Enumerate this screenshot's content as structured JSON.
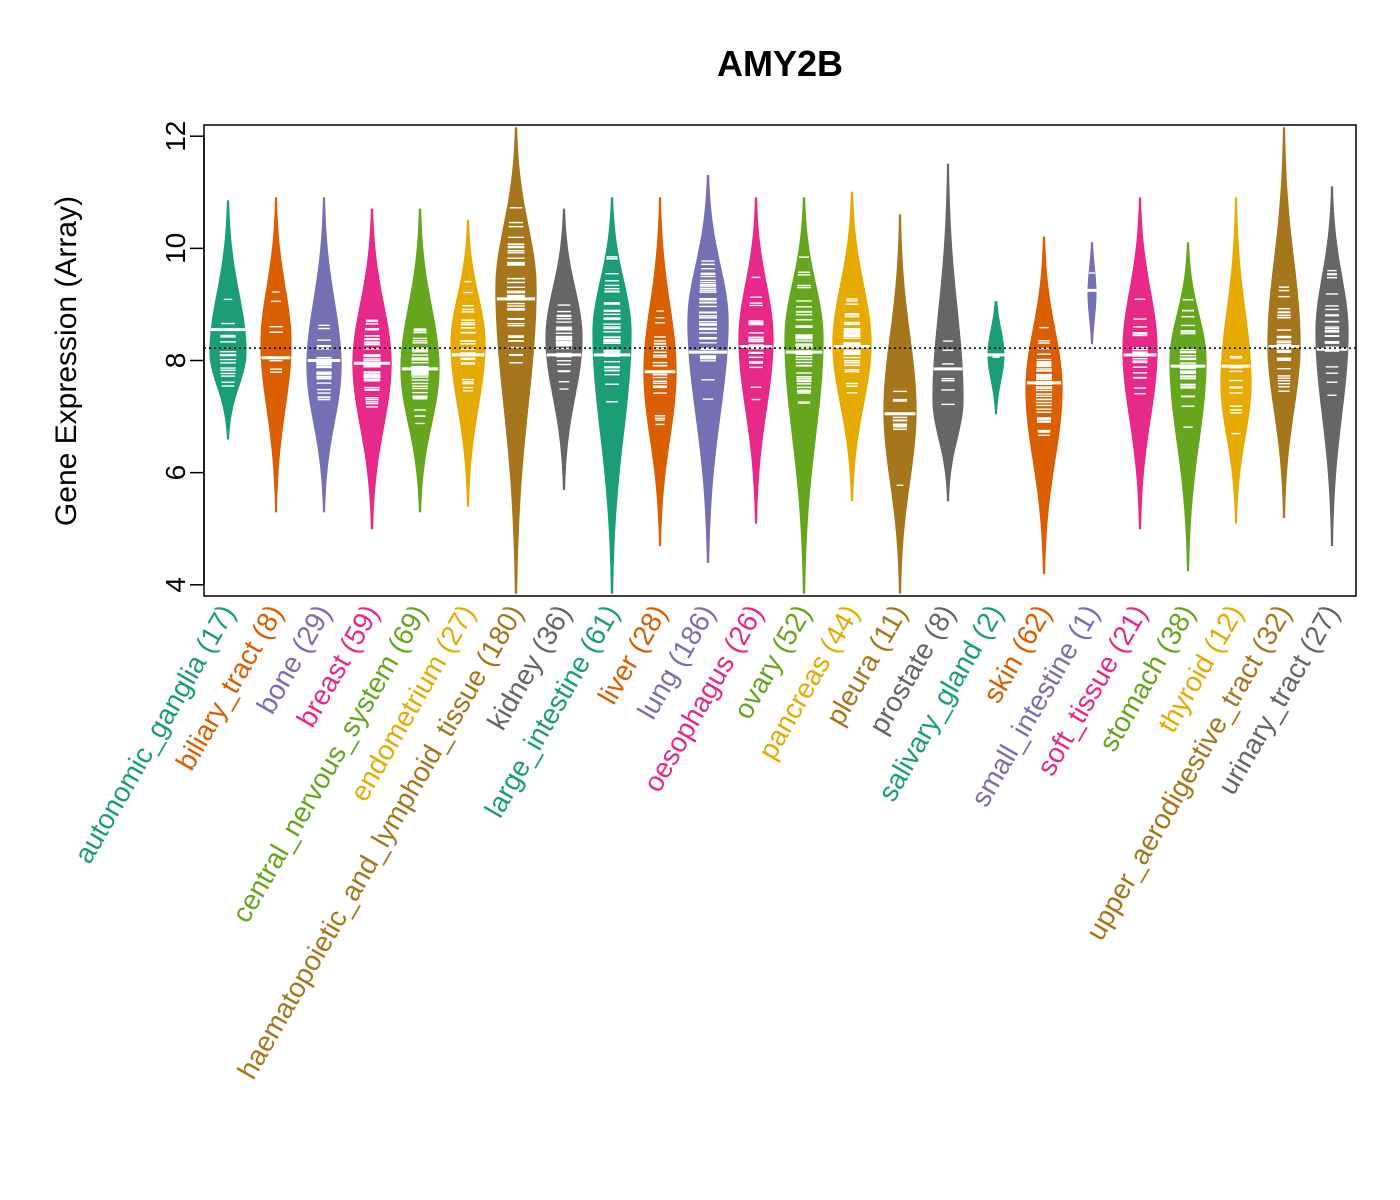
{
  "chart_data": {
    "type": "beanplot",
    "title": "AMY2B",
    "xlabel": "",
    "ylabel": "Gene Expression (Array)",
    "ylim": [
      3.8,
      12.2
    ],
    "yticks": [
      4,
      6,
      8,
      10,
      12
    ],
    "reference_line": 8.22,
    "categories": [
      {
        "name": "autonomic_ganglia",
        "n": 17,
        "label": "autonomic_ganglia (17)",
        "color": "#1B9E77",
        "median": 8.55,
        "min": 6.6,
        "max": 10.85,
        "peak": 8.15,
        "width": 0.9
      },
      {
        "name": "biliary_tract",
        "n": 8,
        "label": "biliary_tract (8)",
        "color": "#D95F02",
        "median": 8.05,
        "min": 5.3,
        "max": 10.9,
        "peak": 8.3,
        "width": 0.75
      },
      {
        "name": "bone",
        "n": 29,
        "label": "bone (29)",
        "color": "#7570B3",
        "median": 8.0,
        "min": 5.3,
        "max": 10.9,
        "peak": 7.9,
        "width": 0.85
      },
      {
        "name": "breast",
        "n": 59,
        "label": "breast (59)",
        "color": "#E7298A",
        "median": 7.95,
        "min": 5.0,
        "max": 10.7,
        "peak": 7.95,
        "width": 0.95
      },
      {
        "name": "central_nervous_system",
        "n": 69,
        "label": "central_nervous_system (69)",
        "color": "#66A61E",
        "median": 7.85,
        "min": 5.3,
        "max": 10.7,
        "peak": 7.85,
        "width": 0.95
      },
      {
        "name": "endometrium",
        "n": 27,
        "label": "endometrium (27)",
        "color": "#E6AB02",
        "median": 8.1,
        "min": 5.4,
        "max": 10.5,
        "peak": 8.3,
        "width": 0.85
      },
      {
        "name": "haematopoietic_and_lymphoid_tissue",
        "n": 180,
        "label": "haematopoietic_and_lymphoid_tissue (180)",
        "color": "#A6761D",
        "median": 9.1,
        "min": 3.85,
        "max": 12.15,
        "peak": 9.3,
        "width": 1.0
      },
      {
        "name": "kidney",
        "n": 36,
        "label": "kidney (36)",
        "color": "#666666",
        "median": 8.1,
        "min": 5.7,
        "max": 10.7,
        "peak": 8.4,
        "width": 0.9
      },
      {
        "name": "large_intestine",
        "n": 61,
        "label": "large_intestine (61)",
        "color": "#1B9E77",
        "median": 8.1,
        "min": 3.85,
        "max": 10.9,
        "peak": 8.5,
        "width": 0.95
      },
      {
        "name": "liver",
        "n": 28,
        "label": "liver (28)",
        "color": "#D95F02",
        "median": 7.8,
        "min": 4.7,
        "max": 10.9,
        "peak": 7.8,
        "width": 0.8
      },
      {
        "name": "lung",
        "n": 186,
        "label": "lung (186)",
        "color": "#7570B3",
        "median": 8.15,
        "min": 4.4,
        "max": 11.3,
        "peak": 8.7,
        "width": 1.0
      },
      {
        "name": "oesophagus",
        "n": 26,
        "label": "oesophagus (26)",
        "color": "#E7298A",
        "median": 8.25,
        "min": 5.1,
        "max": 10.9,
        "peak": 8.4,
        "width": 0.85
      },
      {
        "name": "ovary",
        "n": 52,
        "label": "ovary (52)",
        "color": "#66A61E",
        "median": 8.15,
        "min": 3.85,
        "max": 10.9,
        "peak": 8.4,
        "width": 0.95
      },
      {
        "name": "pancreas",
        "n": 44,
        "label": "pancreas (44)",
        "color": "#E6AB02",
        "median": 8.25,
        "min": 5.5,
        "max": 11.0,
        "peak": 8.3,
        "width": 0.95
      },
      {
        "name": "pleura",
        "n": 11,
        "label": "pleura (11)",
        "color": "#A6761D",
        "median": 7.05,
        "min": 3.85,
        "max": 10.6,
        "peak": 7.1,
        "width": 0.8
      },
      {
        "name": "prostate",
        "n": 8,
        "label": "prostate (8)",
        "color": "#666666",
        "median": 7.85,
        "min": 5.5,
        "max": 11.5,
        "peak": 7.3,
        "width": 0.75
      },
      {
        "name": "salivary_gland",
        "n": 2,
        "label": "salivary_gland (2)",
        "color": "#1B9E77",
        "median": 8.1,
        "min": 7.05,
        "max": 9.05,
        "peak": 8.1,
        "width": 0.4
      },
      {
        "name": "skin",
        "n": 62,
        "label": "skin (62)",
        "color": "#D95F02",
        "median": 7.6,
        "min": 4.2,
        "max": 10.2,
        "peak": 7.5,
        "width": 0.9
      },
      {
        "name": "small_intestine",
        "n": 1,
        "label": "small_intestine (1)",
        "color": "#7570B3",
        "median": 9.25,
        "min": 8.3,
        "max": 10.1,
        "peak": 9.2,
        "width": 0.2
      },
      {
        "name": "soft_tissue",
        "n": 21,
        "label": "soft_tissue (21)",
        "color": "#E7298A",
        "median": 8.1,
        "min": 5.0,
        "max": 10.9,
        "peak": 8.2,
        "width": 0.85
      },
      {
        "name": "stomach",
        "n": 38,
        "label": "stomach (38)",
        "color": "#66A61E",
        "median": 7.9,
        "min": 4.25,
        "max": 10.1,
        "peak": 8.0,
        "width": 0.9
      },
      {
        "name": "thyroid",
        "n": 12,
        "label": "thyroid (12)",
        "color": "#E6AB02",
        "median": 7.9,
        "min": 5.1,
        "max": 10.9,
        "peak": 7.6,
        "width": 0.75
      },
      {
        "name": "upper_aerodigestive_tract",
        "n": 32,
        "label": "upper_aerodigestive_tract (32)",
        "color": "#A6761D",
        "median": 8.25,
        "min": 5.2,
        "max": 12.15,
        "peak": 8.3,
        "width": 0.8
      },
      {
        "name": "urinary_tract",
        "n": 27,
        "label": "urinary_tract (27)",
        "color": "#666666",
        "median": 8.2,
        "min": 4.7,
        "max": 11.1,
        "peak": 8.5,
        "width": 0.8
      }
    ]
  }
}
